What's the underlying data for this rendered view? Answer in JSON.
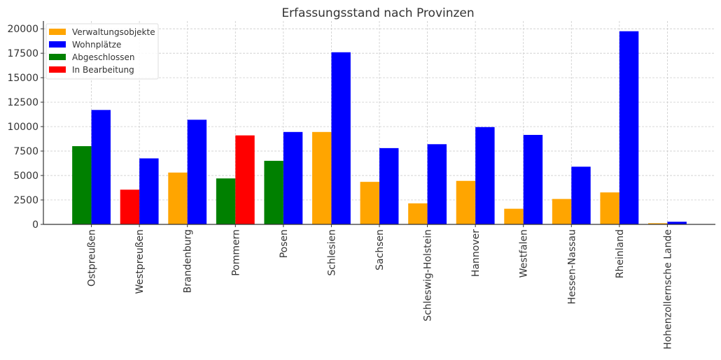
{
  "chart_data": {
    "type": "bar",
    "title": "Erfassungsstand nach Provinzen",
    "xlabel": "",
    "ylabel": "",
    "ylim": [
      0,
      20800
    ],
    "yticks": [
      0,
      2500,
      5000,
      7500,
      10000,
      12500,
      15000,
      17500,
      20000
    ],
    "grid": true,
    "legend_position": "top-left",
    "legend": [
      {
        "label": "Verwaltungsobjekte",
        "color": "#ffa500"
      },
      {
        "label": "Wohnplätze",
        "color": "#0000ff"
      },
      {
        "label": "Abgeschlossen",
        "color": "#008000"
      },
      {
        "label": "In Bearbeitung",
        "color": "#ff0000"
      }
    ],
    "categories": [
      "Ostpreußen",
      "Westpreußen",
      "Brandenburg",
      "Pommern",
      "Posen",
      "Schlesien",
      "Sachsen",
      "Schleswig-Holstein",
      "Hannover",
      "Westfalen",
      "Hessen-Nassau",
      "Rheinland",
      "Hohenzollernsche Lande"
    ],
    "bars": [
      {
        "left": {
          "value": 8000,
          "color": "#008000"
        },
        "right": {
          "value": 11700,
          "color": "#0000ff"
        }
      },
      {
        "left": {
          "value": 3550,
          "color": "#ff0000"
        },
        "right": {
          "value": 6750,
          "color": "#0000ff"
        }
      },
      {
        "left": {
          "value": 5300,
          "color": "#ffa500"
        },
        "right": {
          "value": 10700,
          "color": "#0000ff"
        }
      },
      {
        "left": {
          "value": 4700,
          "color": "#008000"
        },
        "right": {
          "value": 9100,
          "color": "#ff0000"
        }
      },
      {
        "left": {
          "value": 6500,
          "color": "#008000"
        },
        "right": {
          "value": 9450,
          "color": "#0000ff"
        }
      },
      {
        "left": {
          "value": 9450,
          "color": "#ffa500"
        },
        "right": {
          "value": 17600,
          "color": "#0000ff"
        }
      },
      {
        "left": {
          "value": 4350,
          "color": "#ffa500"
        },
        "right": {
          "value": 7800,
          "color": "#0000ff"
        }
      },
      {
        "left": {
          "value": 2150,
          "color": "#ffa500"
        },
        "right": {
          "value": 8200,
          "color": "#0000ff"
        }
      },
      {
        "left": {
          "value": 4450,
          "color": "#ffa500"
        },
        "right": {
          "value": 9950,
          "color": "#0000ff"
        }
      },
      {
        "left": {
          "value": 1600,
          "color": "#ffa500"
        },
        "right": {
          "value": 9150,
          "color": "#0000ff"
        }
      },
      {
        "left": {
          "value": 2600,
          "color": "#ffa500"
        },
        "right": {
          "value": 5900,
          "color": "#0000ff"
        }
      },
      {
        "left": {
          "value": 3270,
          "color": "#ffa500"
        },
        "right": {
          "value": 19750,
          "color": "#0000ff"
        }
      },
      {
        "left": {
          "value": 120,
          "color": "#ffa500"
        },
        "right": {
          "value": 270,
          "color": "#0000ff"
        }
      }
    ]
  }
}
